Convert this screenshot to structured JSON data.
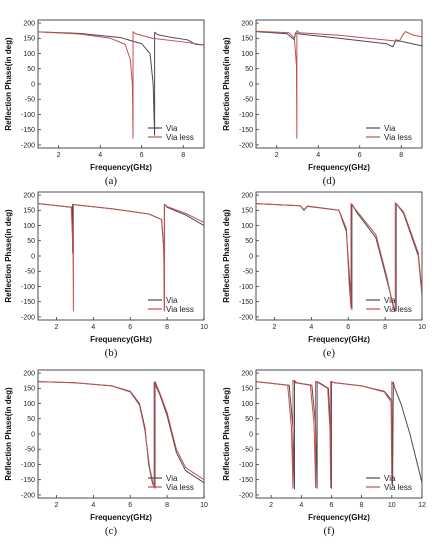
{
  "colors": {
    "via": "#4a4a55",
    "via_less": "#c0504d",
    "axis": "#222222"
  },
  "chart_data": [
    {
      "type": "line",
      "panel_label": "(a)",
      "xlabel": "Frequency(GHz)",
      "ylabel": "Reflection Phase(in deg)",
      "xlim": [
        1,
        9
      ],
      "ylim": [
        -210,
        210
      ],
      "xticks": [
        2,
        4,
        6,
        8
      ],
      "yticks": [
        -200,
        -150,
        -100,
        -50,
        0,
        50,
        100,
        150,
        200
      ],
      "grid": false,
      "legend": "bottom-right",
      "series": [
        {
          "name": "Via",
          "x": [
            1.0,
            3.0,
            5.0,
            6.0,
            6.4,
            6.55,
            6.62,
            6.62,
            6.75,
            7.5,
            8.2,
            8.6,
            9.0
          ],
          "y": [
            171,
            166,
            152,
            132,
            100,
            0,
            -168,
            170,
            162,
            152,
            145,
            130,
            128
          ]
        },
        {
          "name": "Via less",
          "x": [
            1.0,
            3.0,
            4.5,
            5.2,
            5.45,
            5.55,
            5.58,
            5.58,
            5.7,
            6.5,
            8.0,
            9.0
          ],
          "y": [
            171,
            164,
            150,
            130,
            80,
            0,
            -178,
            172,
            165,
            150,
            138,
            128
          ]
        }
      ]
    },
    {
      "type": "line",
      "panel_label": "(d)",
      "xlabel": "Frequency(GHz)",
      "ylabel": "Reflection Phase(in deg)",
      "xlim": [
        1,
        9
      ],
      "ylim": [
        -210,
        210
      ],
      "xticks": [
        2,
        4,
        6,
        8
      ],
      "yticks": [
        -200,
        -150,
        -100,
        -50,
        0,
        50,
        100,
        150,
        200
      ],
      "grid": false,
      "legend": "bottom-right",
      "series": [
        {
          "name": "Via",
          "x": [
            1.0,
            2.5,
            2.85,
            2.9,
            3.1,
            5.0,
            7.3,
            7.6,
            7.75,
            8.0,
            9.0
          ],
          "y": [
            172,
            165,
            145,
            168,
            164,
            150,
            132,
            122,
            145,
            140,
            125
          ]
        },
        {
          "name": "Via less",
          "x": [
            1.0,
            2.6,
            2.85,
            2.95,
            2.97,
            2.97,
            3.1,
            5.0,
            7.9,
            8.05,
            8.2,
            8.6,
            9.0
          ],
          "y": [
            173,
            168,
            150,
            60,
            -178,
            175,
            168,
            160,
            140,
            158,
            172,
            160,
            155
          ]
        }
      ]
    },
    {
      "type": "line",
      "panel_label": "(b)",
      "xlabel": "Frequency(GHz)",
      "ylabel": "Reflection Phase(in deg)",
      "xlim": [
        1,
        10
      ],
      "ylim": [
        -210,
        210
      ],
      "xticks": [
        2,
        4,
        6,
        8,
        10
      ],
      "yticks": [
        -200,
        -150,
        -100,
        -50,
        0,
        50,
        100,
        150,
        200
      ],
      "grid": false,
      "legend": "bottom-right",
      "series": [
        {
          "name": "Via",
          "x": [
            1.0,
            2.85,
            2.88,
            2.88,
            3.0,
            5.0,
            7.0,
            7.7,
            7.82,
            7.85,
            7.85,
            8.0,
            9.0,
            10.0
          ],
          "y": [
            172,
            160,
            10,
            170,
            168,
            155,
            138,
            120,
            20,
            -180,
            170,
            160,
            135,
            100
          ]
        },
        {
          "name": "Via less",
          "x": [
            1.0,
            2.8,
            2.9,
            2.92,
            2.92,
            3.0,
            5.0,
            7.0,
            7.7,
            7.82,
            7.86,
            7.86,
            8.0,
            9.0,
            10.0
          ],
          "y": [
            172,
            160,
            20,
            -180,
            170,
            168,
            155,
            138,
            120,
            30,
            -178,
            170,
            162,
            140,
            110
          ]
        }
      ]
    },
    {
      "type": "line",
      "panel_label": "(e)",
      "xlabel": "Frequency(GHz)",
      "ylabel": "Reflection Phase(in deg)",
      "xlim": [
        1,
        10
      ],
      "ylim": [
        -210,
        210
      ],
      "xticks": [
        2,
        4,
        6,
        8,
        10
      ],
      "yticks": [
        -200,
        -150,
        -100,
        -50,
        0,
        50,
        100,
        150,
        200
      ],
      "grid": false,
      "legend": "bottom-right",
      "series": [
        {
          "name": "Via",
          "x": [
            1.0,
            3.4,
            3.6,
            3.8,
            5.5,
            5.9,
            6.1,
            6.2,
            6.2,
            6.5,
            7.5,
            8.1,
            8.5,
            8.6,
            8.6,
            9.0,
            9.8,
            10.0
          ],
          "y": [
            172,
            165,
            150,
            163,
            150,
            80,
            -100,
            -175,
            170,
            140,
            60,
            -80,
            -175,
            -180,
            172,
            140,
            0,
            -130
          ]
        },
        {
          "name": "Via less",
          "x": [
            1.0,
            3.4,
            3.6,
            3.8,
            5.5,
            5.9,
            6.05,
            6.15,
            6.15,
            6.5,
            7.5,
            8.1,
            8.45,
            8.55,
            8.55,
            9.0,
            9.8,
            10.0
          ],
          "y": [
            172,
            165,
            152,
            164,
            150,
            90,
            -90,
            -170,
            172,
            145,
            70,
            -70,
            -170,
            -175,
            175,
            145,
            10,
            -120
          ]
        }
      ]
    },
    {
      "type": "line",
      "panel_label": "(c)",
      "xlabel": "Frequency(GHz)",
      "ylabel": "Reflection Phase(in deg)",
      "xlim": [
        1,
        10
      ],
      "ylim": [
        -210,
        210
      ],
      "xticks": [
        2,
        4,
        6,
        8,
        10
      ],
      "yticks": [
        -200,
        -150,
        -100,
        -50,
        0,
        50,
        100,
        150,
        200
      ],
      "grid": false,
      "legend": "bottom-right",
      "series": [
        {
          "name": "Via",
          "x": [
            1.0,
            3.0,
            5.0,
            6.0,
            6.5,
            6.8,
            7.0,
            7.2,
            7.3,
            7.3,
            7.6,
            8.0,
            8.5,
            9.0,
            10.0
          ],
          "y": [
            172,
            168,
            158,
            140,
            100,
            20,
            -100,
            -160,
            -175,
            170,
            130,
            60,
            -60,
            -120,
            -160
          ]
        },
        {
          "name": "Via less",
          "x": [
            1.0,
            3.0,
            5.0,
            6.0,
            6.5,
            6.8,
            7.05,
            7.25,
            7.35,
            7.35,
            7.6,
            8.0,
            8.5,
            9.0,
            10.0
          ],
          "y": [
            172,
            168,
            158,
            138,
            95,
            10,
            -110,
            -165,
            -178,
            172,
            135,
            70,
            -50,
            -110,
            -150
          ]
        }
      ]
    },
    {
      "type": "line",
      "panel_label": "(f)",
      "xlabel": "Frequency(GHz)",
      "ylabel": "Reflection Phase(in deg)",
      "xlim": [
        1,
        12
      ],
      "ylim": [
        -210,
        210
      ],
      "xticks": [
        2,
        4,
        6,
        8,
        10,
        12
      ],
      "yticks": [
        -200,
        -150,
        -100,
        -50,
        0,
        50,
        100,
        150,
        200
      ],
      "grid": false,
      "legend": "bottom-right",
      "series": [
        {
          "name": "Via",
          "x": [
            1.0,
            3.2,
            3.45,
            3.55,
            3.55,
            3.7,
            4.7,
            4.95,
            5.05,
            5.05,
            5.3,
            5.8,
            5.95,
            6.0,
            6.0,
            6.2,
            8.0,
            9.5,
            10.0,
            10.05,
            10.1,
            10.2,
            10.6,
            11.2,
            12.0
          ],
          "y": [
            172,
            160,
            20,
            -180,
            175,
            168,
            160,
            30,
            -178,
            172,
            165,
            150,
            10,
            -178,
            172,
            168,
            158,
            140,
            110,
            -170,
            170,
            150,
            100,
            0,
            -160
          ]
        },
        {
          "name": "Via less",
          "x": [
            1.0,
            3.1,
            3.35,
            3.45,
            3.45,
            3.6,
            4.6,
            4.85,
            4.95,
            4.95,
            5.2,
            5.75,
            5.9,
            5.95,
            5.95,
            6.1,
            8.0,
            9.5,
            9.95,
            10.0,
            10.0,
            10.2
          ],
          "y": [
            172,
            160,
            20,
            -178,
            176,
            168,
            160,
            30,
            -176,
            173,
            166,
            150,
            15,
            -176,
            173,
            169,
            158,
            138,
            105,
            -165,
            172,
            150
          ]
        }
      ]
    }
  ]
}
